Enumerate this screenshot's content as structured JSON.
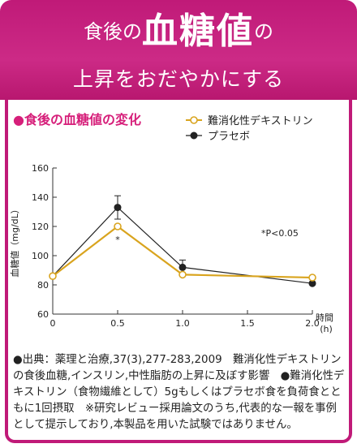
{
  "header": {
    "line1_prefix": "食後の",
    "line1_emphasis": "血糖値",
    "line1_suffix": "の",
    "line2": "上昇をおだやかにする"
  },
  "section": {
    "title": "●食後の血糖値の変化"
  },
  "colors": {
    "accent": "#c01a78",
    "title_pink": "#d61f7a",
    "series_gold": "#d9a41e",
    "series_black": "#222222"
  },
  "chart_data": {
    "type": "line",
    "ylabel": "血糖値（mg/dL）",
    "xlabel_line1": "時間",
    "xlabel_line2": "(h)",
    "xlim": [
      0,
      2.0
    ],
    "ylim": [
      60,
      160
    ],
    "x_ticks": [
      0,
      0.5,
      1.0,
      1.5,
      2.0
    ],
    "x_tick_labels": [
      "0",
      "0.5",
      "1.0",
      "1.5",
      "2.0"
    ],
    "y_ticks": [
      60,
      80,
      100,
      120,
      140,
      160
    ],
    "annotation": "*P<0.05",
    "significance_mark": "*",
    "series": [
      {
        "name": "難消化性デキストリン",
        "x": [
          0,
          0.5,
          1.0,
          2.0
        ],
        "values": [
          86,
          120,
          87,
          85
        ],
        "color": "#d9a41e",
        "marker": "open-circle"
      },
      {
        "name": "プラセボ",
        "x": [
          0,
          0.5,
          1.0,
          2.0
        ],
        "values": [
          86,
          133,
          92,
          81
        ],
        "error": [
          0,
          8,
          5,
          0
        ],
        "color": "#222222",
        "marker": "filled-circle"
      }
    ]
  },
  "footnote": "●出典：薬理と治療,37(3),277-283,2009　難消化性デキストリンの食後血糖,インスリン,中性脂肪の上昇に及ぼす影響　●難消化性デキストリン（食物繊維として）5gもしくはプラセボ食を負荷食とともに1回摂取　※研究レビュー採用論文のうち,代表的な一報を事例として提示しており,本製品を用いた試験ではありません。"
}
